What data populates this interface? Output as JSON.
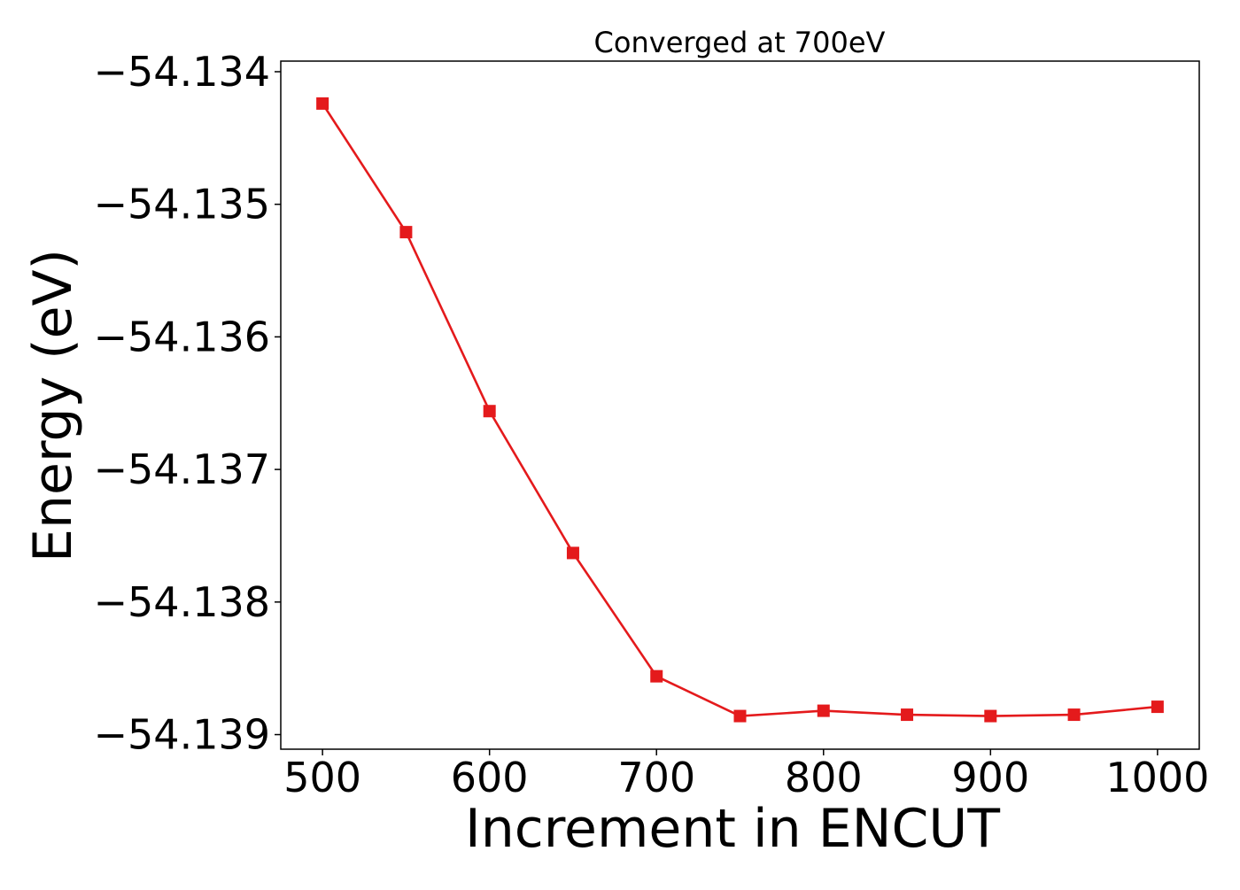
{
  "chart_data": {
    "type": "line",
    "title": "Converged at 700eV",
    "xlabel": "Increment in ENCUT",
    "ylabel": "Energy (eV)",
    "x": [
      500,
      550,
      600,
      650,
      700,
      750,
      800,
      850,
      900,
      950,
      1000
    ],
    "series": [
      {
        "values": [
          -54.13424,
          -54.13521,
          -54.13656,
          -54.13763,
          -54.13856,
          -54.13886,
          -54.13882,
          -54.13885,
          -54.13886,
          -54.13885,
          -54.13879
        ],
        "color": "#e41a1c",
        "marker": "square"
      }
    ],
    "xlim": [
      475,
      1025
    ],
    "ylim": [
      -54.13911,
      -54.13392
    ],
    "xticks": [
      500,
      600,
      700,
      800,
      900,
      1000
    ],
    "xtick_labels": [
      "500",
      "600",
      "700",
      "800",
      "900",
      "1000"
    ],
    "yticks": [
      -54.134,
      -54.135,
      -54.136,
      -54.137,
      -54.138,
      -54.139
    ],
    "ytick_labels": [
      "−54.134",
      "−54.135",
      "−54.136",
      "−54.137",
      "−54.138",
      "−54.139"
    ],
    "grid": false,
    "legend": "none"
  }
}
